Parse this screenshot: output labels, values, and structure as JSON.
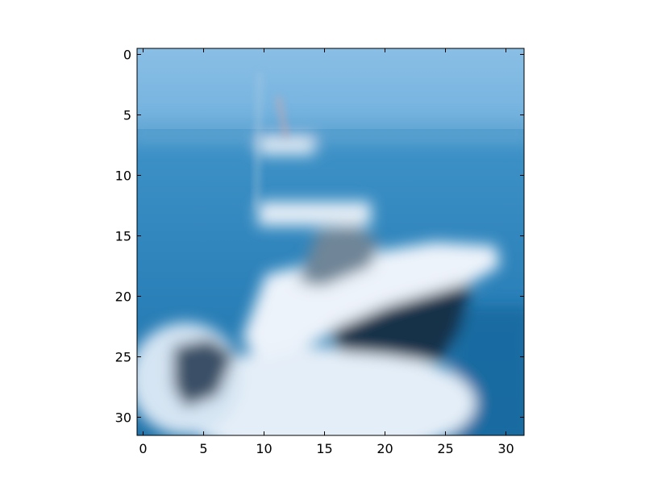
{
  "figure": {
    "background_color": "#ffffff",
    "subject": "blurred low-resolution photo of a white motorboat on blue sea",
    "palette": {
      "sky_light": "#8cc0e6",
      "sky_mid": "#74b2de",
      "horizon": "#5aa0cf",
      "sea": "#2a7fb6",
      "sea_dark": "#1c6ea4",
      "hull_white": "#e9f1f8",
      "hull_dark": "#17324a",
      "cabin_gray": "#9fb3c4",
      "wake_white": "#dde9f5"
    }
  },
  "axes": {
    "x_range": [
      -0.5,
      31.5
    ],
    "y_range": [
      -0.5,
      31.5
    ],
    "y_inverted": true,
    "x_ticks": [
      {
        "value": 0,
        "label": "0"
      },
      {
        "value": 5,
        "label": "5"
      },
      {
        "value": 10,
        "label": "10"
      },
      {
        "value": 15,
        "label": "15"
      },
      {
        "value": 20,
        "label": "20"
      },
      {
        "value": 25,
        "label": "25"
      },
      {
        "value": 30,
        "label": "30"
      }
    ],
    "y_ticks": [
      {
        "value": 0,
        "label": "0"
      },
      {
        "value": 5,
        "label": "5"
      },
      {
        "value": 10,
        "label": "10"
      },
      {
        "value": 15,
        "label": "15"
      },
      {
        "value": 20,
        "label": "20"
      },
      {
        "value": 25,
        "label": "25"
      },
      {
        "value": 30,
        "label": "30"
      }
    ],
    "spine_color": "#000000",
    "grid": false
  }
}
